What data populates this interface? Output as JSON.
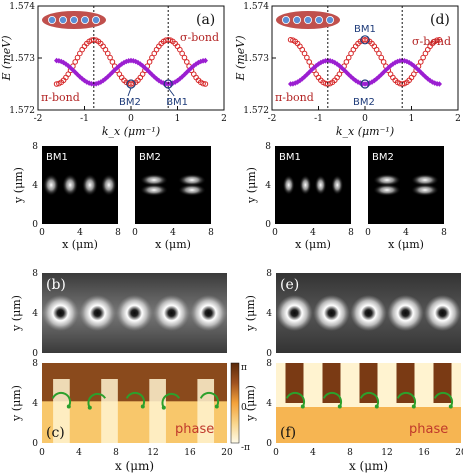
{
  "chart_data": [
    {
      "panel": "(a)",
      "type": "scatter",
      "xlabel": "k_x (μm⁻¹)",
      "ylabel": "E (meV)",
      "xlim": [
        -2,
        2
      ],
      "ylim": [
        1.572,
        1.574
      ],
      "x_ticks": [
        "-2",
        "-1",
        "0",
        "1",
        "2"
      ],
      "y_ticks": [
        "1.572",
        "1.573",
        "1.574"
      ],
      "series": [
        {
          "name": "σ-bond",
          "color": "#d62728",
          "marker": "open-circle",
          "period": 1.6,
          "center": 0.8,
          "e_min": 1.5725,
          "e_max": 1.57335
        },
        {
          "name": "π-bond",
          "color": "#9b1fd1",
          "marker": "filled-diamond",
          "period": 1.6,
          "center": 0.0,
          "e_min": 1.5725,
          "e_max": 1.57295
        }
      ],
      "annotations": [
        {
          "text": "σ-bond"
        },
        {
          "text": "π-bond"
        },
        {
          "text": "BM2"
        },
        {
          "text": "BM1"
        }
      ]
    },
    {
      "panel": "(d)",
      "type": "scatter",
      "xlabel": "k_x (μm⁻¹)",
      "ylabel": "E (meV)",
      "xlim": [
        -2,
        2
      ],
      "ylim": [
        1.572,
        1.574
      ],
      "x_ticks": [
        "-2",
        "-1",
        "0",
        "1",
        "2"
      ],
      "y_ticks": [
        "1.572",
        "1.573",
        "1.574"
      ],
      "series": [
        {
          "name": "σ-bond",
          "color": "#d62728",
          "marker": "open-circle",
          "period": 1.6,
          "center": 0.0,
          "e_min": 1.5725,
          "e_max": 1.57335
        },
        {
          "name": "π-bond",
          "color": "#9b1fd1",
          "marker": "filled-diamond",
          "period": 1.6,
          "center": 0.8,
          "e_min": 1.5725,
          "e_max": 1.57295
        }
      ],
      "annotations": [
        {
          "text": "BM1"
        },
        {
          "text": "σ-bond"
        },
        {
          "text": "π-bond"
        },
        {
          "text": "BM2"
        }
      ]
    },
    {
      "panel": "mode-profiles",
      "type": "heatmap",
      "xlabel": "x (μm)",
      "ylabel": "y (μm)",
      "x_ticks": [
        "0",
        "4",
        "8"
      ],
      "y_ticks": [
        "0",
        "4",
        "8"
      ],
      "labels": [
        "BM1",
        "BM2",
        "BM1",
        "BM2"
      ]
    },
    {
      "panel": "(b)/(e)",
      "type": "heatmap",
      "ylabel": "y (μm)",
      "y_ticks": [
        "0",
        "4",
        "8"
      ],
      "vortex_x_um": [
        2,
        6,
        10,
        14,
        18
      ]
    },
    {
      "panel": "(c)/(f)",
      "type": "heatmap",
      "xlabel": "x (μm)",
      "ylabel": "y (μm)",
      "x_ticks": [
        "0",
        "4",
        "8",
        "12",
        "16",
        "20"
      ],
      "y_ticks": [
        "0",
        "4",
        "8"
      ],
      "colorbar_ticks": [
        "π",
        "0",
        "-π"
      ],
      "label": "phase"
    }
  ],
  "panels": {
    "a": "(a)",
    "b": "(b)",
    "c": "(c)",
    "d": "(d)",
    "e": "(e)",
    "f": "(f)"
  },
  "colors": {
    "sigma": "#d62728",
    "pi": "#9b1fd1",
    "bm_marker": "#1f3c7a",
    "chain_fill": "#c0504d",
    "site": "#5b8fd6",
    "vortex_arrow": "#2ca02c"
  }
}
